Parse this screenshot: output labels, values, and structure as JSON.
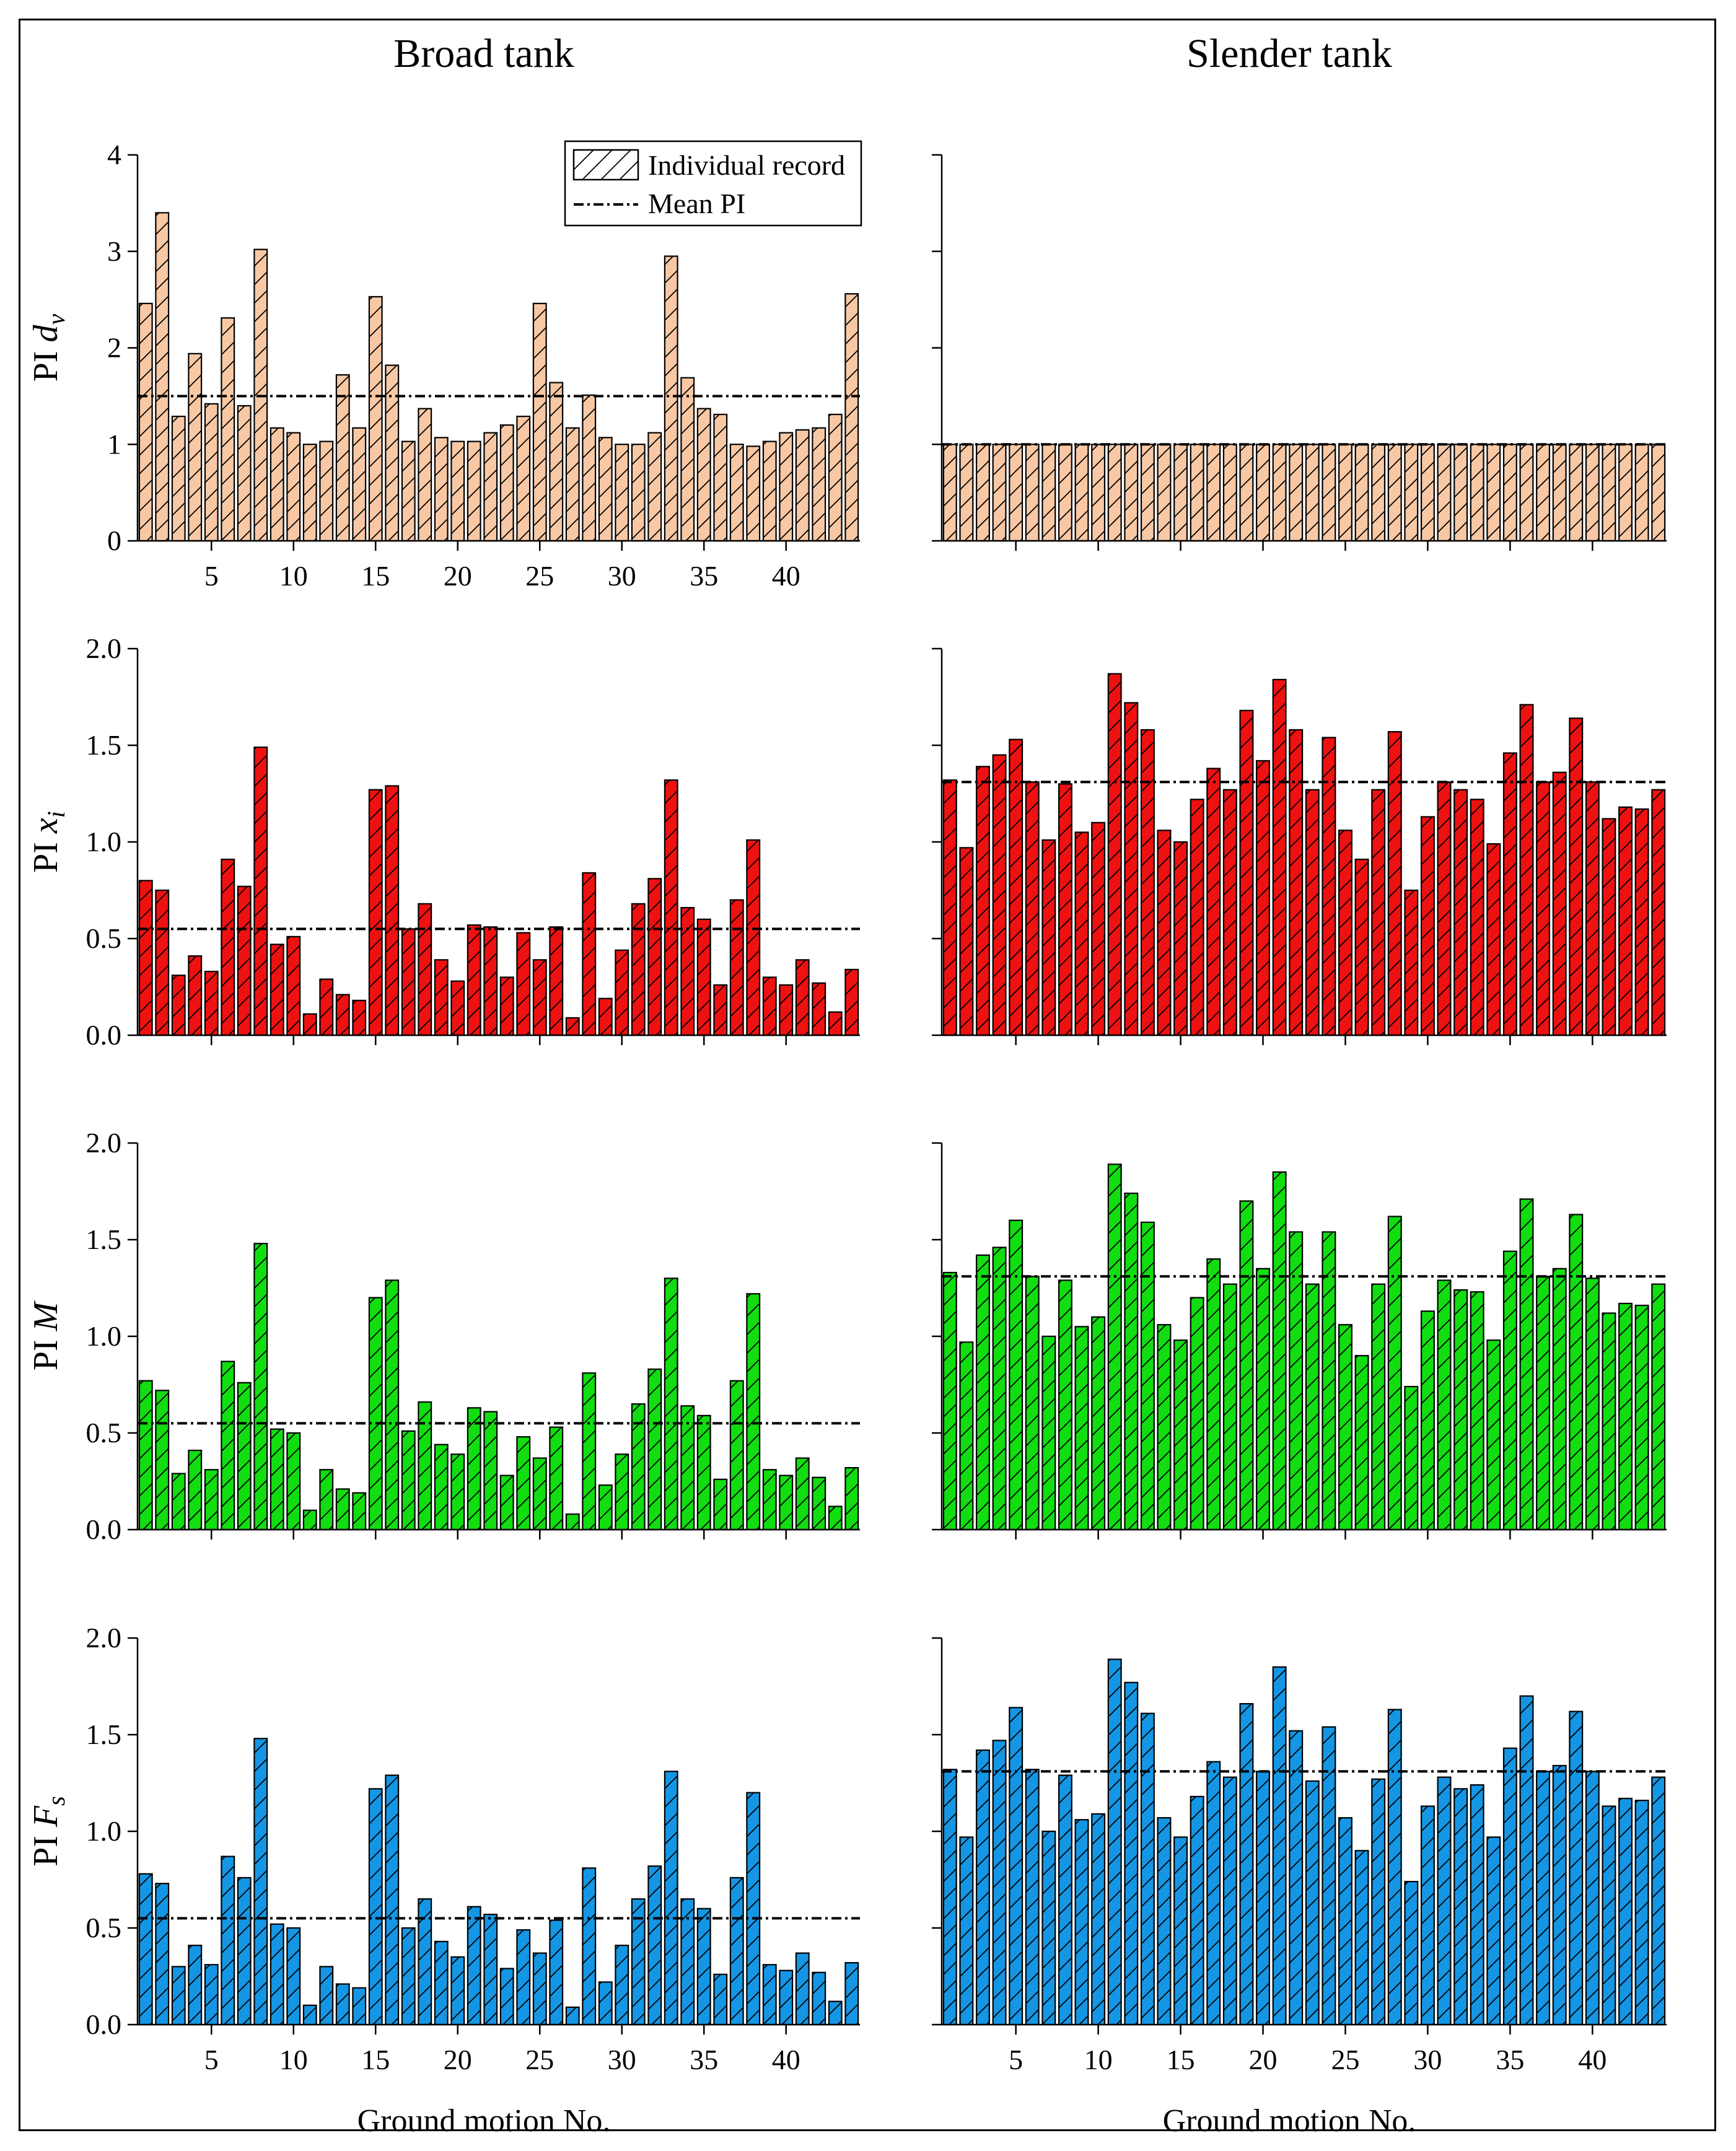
{
  "figure": {
    "column_titles": [
      "Broad tank",
      "Slender tank"
    ],
    "xlabel": "Ground motion No.",
    "legend": {
      "record_label": "Individual record",
      "mean_label": "Mean PI"
    },
    "colors": {
      "dv": "#f8c8a4",
      "xi": "#ee1111",
      "M": "#11dd11",
      "Fs": "#1496e4",
      "edge": "#000000"
    }
  },
  "chart_data": [
    {
      "type": "bar",
      "title": "Broad tank",
      "ylabel": "PI d_v",
      "ylabel_main": "PI ",
      "ylabel_var": "d",
      "ylabel_sub": "v",
      "color": "#f8c8a4",
      "ylim": [
        0,
        4
      ],
      "yticks": [
        0,
        1,
        2,
        3,
        4
      ],
      "yticklabels": [
        "0",
        "1",
        "2",
        "3",
        "4"
      ],
      "xticklabels": [
        "5",
        "10",
        "15",
        "20",
        "25",
        "30",
        "35",
        "40"
      ],
      "mean": 1.5,
      "values": [
        2.46,
        3.4,
        1.29,
        1.94,
        1.42,
        2.31,
        1.4,
        3.02,
        1.17,
        1.12,
        1.0,
        1.03,
        1.72,
        1.17,
        2.53,
        1.82,
        1.03,
        1.37,
        1.07,
        1.03,
        1.03,
        1.12,
        1.2,
        1.29,
        2.46,
        1.64,
        1.17,
        1.51,
        1.07,
        1.0,
        1.0,
        1.12,
        2.95,
        1.69,
        1.37,
        1.31,
        1.0,
        0.98,
        1.03,
        1.12,
        1.15,
        1.17,
        1.31,
        2.56
      ]
    },
    {
      "type": "bar",
      "title": "Slender tank",
      "ylabel": "",
      "color": "#f8c8a4",
      "ylim": [
        0,
        4
      ],
      "yticks": [
        0,
        1,
        2,
        3,
        4
      ],
      "yticklabels": [],
      "xticklabels": [],
      "mean": 1.0,
      "values": [
        1.0,
        1.0,
        1.0,
        1.0,
        1.0,
        1.0,
        1.0,
        1.0,
        1.0,
        1.0,
        1.0,
        1.0,
        1.0,
        1.0,
        1.0,
        1.0,
        1.0,
        1.0,
        1.0,
        1.0,
        1.0,
        1.0,
        1.0,
        1.0,
        1.0,
        1.0,
        1.0,
        1.0,
        1.0,
        1.0,
        1.0,
        1.0,
        1.0,
        1.0,
        1.0,
        1.0,
        1.0,
        1.0,
        1.0,
        1.0,
        1.0,
        1.0,
        1.0,
        1.0
      ]
    },
    {
      "type": "bar",
      "title": "Broad tank",
      "ylabel": "PI x_i",
      "ylabel_main": "PI ",
      "ylabel_var": "x",
      "ylabel_sub": "i",
      "color": "#ee1111",
      "ylim": [
        0,
        2
      ],
      "yticks": [
        0,
        0.5,
        1,
        1.5,
        2
      ],
      "yticklabels": [
        "0.0",
        "0.5",
        "1.0",
        "1.5",
        "2.0"
      ],
      "xticklabels": [],
      "mean": 0.55,
      "values": [
        0.8,
        0.75,
        0.31,
        0.41,
        0.33,
        0.91,
        0.77,
        1.49,
        0.47,
        0.51,
        0.11,
        0.29,
        0.21,
        0.18,
        1.27,
        1.29,
        0.55,
        0.68,
        0.39,
        0.28,
        0.57,
        0.56,
        0.3,
        0.53,
        0.39,
        0.56,
        0.09,
        0.84,
        0.19,
        0.44,
        0.68,
        0.81,
        1.32,
        0.66,
        0.6,
        0.26,
        0.7,
        1.01,
        0.3,
        0.26,
        0.39,
        0.27,
        0.12,
        0.34
      ]
    },
    {
      "type": "bar",
      "title": "Slender tank",
      "ylabel": "",
      "color": "#ee1111",
      "ylim": [
        0,
        2
      ],
      "yticks": [
        0,
        0.5,
        1,
        1.5,
        2
      ],
      "yticklabels": [],
      "xticklabels": [],
      "mean": 1.31,
      "values": [
        1.32,
        0.97,
        1.39,
        1.45,
        1.53,
        1.31,
        1.01,
        1.3,
        1.05,
        1.1,
        1.87,
        1.72,
        1.58,
        1.06,
        1.0,
        1.22,
        1.38,
        1.27,
        1.68,
        1.42,
        1.84,
        1.58,
        1.27,
        1.54,
        1.06,
        0.91,
        1.27,
        1.57,
        0.75,
        1.13,
        1.31,
        1.27,
        1.22,
        0.99,
        1.46,
        1.71,
        1.31,
        1.36,
        1.64,
        1.31,
        1.12,
        1.18,
        1.17,
        1.27
      ]
    },
    {
      "type": "bar",
      "title": "Broad tank",
      "ylabel": "PI M",
      "ylabel_main": "PI ",
      "ylabel_var": "M",
      "ylabel_sub": "",
      "color": "#11dd11",
      "ylim": [
        0,
        2
      ],
      "yticks": [
        0,
        0.5,
        1,
        1.5,
        2
      ],
      "yticklabels": [
        "0.0",
        "0.5",
        "1.0",
        "1.5",
        "2.0"
      ],
      "xticklabels": [],
      "mean": 0.55,
      "values": [
        0.77,
        0.72,
        0.29,
        0.41,
        0.31,
        0.87,
        0.76,
        1.48,
        0.52,
        0.5,
        0.1,
        0.31,
        0.21,
        0.19,
        1.2,
        1.29,
        0.51,
        0.66,
        0.44,
        0.39,
        0.63,
        0.61,
        0.28,
        0.48,
        0.37,
        0.53,
        0.08,
        0.81,
        0.23,
        0.39,
        0.65,
        0.83,
        1.3,
        0.64,
        0.59,
        0.26,
        0.77,
        1.22,
        0.31,
        0.28,
        0.37,
        0.27,
        0.12,
        0.32
      ]
    },
    {
      "type": "bar",
      "title": "Slender tank",
      "ylabel": "",
      "color": "#11dd11",
      "ylim": [
        0,
        2
      ],
      "yticks": [
        0,
        0.5,
        1,
        1.5,
        2
      ],
      "yticklabels": [],
      "xticklabels": [],
      "mean": 1.31,
      "values": [
        1.33,
        0.97,
        1.42,
        1.46,
        1.6,
        1.31,
        1.0,
        1.29,
        1.05,
        1.1,
        1.89,
        1.74,
        1.59,
        1.06,
        0.98,
        1.2,
        1.4,
        1.27,
        1.7,
        1.35,
        1.85,
        1.54,
        1.27,
        1.54,
        1.06,
        0.9,
        1.27,
        1.62,
        0.74,
        1.13,
        1.29,
        1.24,
        1.23,
        0.98,
        1.44,
        1.71,
        1.31,
        1.35,
        1.63,
        1.3,
        1.12,
        1.17,
        1.16,
        1.27
      ]
    },
    {
      "type": "bar",
      "title": "Broad tank",
      "ylabel": "PI F_s",
      "ylabel_main": "PI ",
      "ylabel_var": "F",
      "ylabel_sub": "s",
      "color": "#1496e4",
      "ylim": [
        0,
        2
      ],
      "yticks": [
        0,
        0.5,
        1,
        1.5,
        2
      ],
      "yticklabels": [
        "0.0",
        "0.5",
        "1.0",
        "1.5",
        "2.0"
      ],
      "xticklabels": [
        "5",
        "10",
        "15",
        "20",
        "25",
        "30",
        "35",
        "40"
      ],
      "mean": 0.55,
      "values": [
        0.78,
        0.73,
        0.3,
        0.41,
        0.31,
        0.87,
        0.76,
        1.48,
        0.52,
        0.5,
        0.1,
        0.3,
        0.21,
        0.19,
        1.22,
        1.29,
        0.5,
        0.65,
        0.43,
        0.35,
        0.61,
        0.57,
        0.29,
        0.49,
        0.37,
        0.54,
        0.09,
        0.81,
        0.22,
        0.41,
        0.65,
        0.82,
        1.31,
        0.65,
        0.6,
        0.26,
        0.76,
        1.2,
        0.31,
        0.28,
        0.37,
        0.27,
        0.12,
        0.32
      ]
    },
    {
      "type": "bar",
      "title": "Slender tank",
      "ylabel": "",
      "color": "#1496e4",
      "ylim": [
        0,
        2
      ],
      "yticks": [
        0,
        0.5,
        1,
        1.5,
        2
      ],
      "yticklabels": [],
      "xticklabels": [
        "5",
        "10",
        "15",
        "20",
        "25",
        "30",
        "35",
        "40"
      ],
      "mean": 1.31,
      "values": [
        1.32,
        0.97,
        1.42,
        1.47,
        1.64,
        1.32,
        1.0,
        1.29,
        1.06,
        1.09,
        1.89,
        1.77,
        1.61,
        1.07,
        0.97,
        1.18,
        1.36,
        1.28,
        1.66,
        1.31,
        1.85,
        1.52,
        1.26,
        1.54,
        1.07,
        0.9,
        1.27,
        1.63,
        0.74,
        1.13,
        1.28,
        1.22,
        1.24,
        0.97,
        1.43,
        1.7,
        1.31,
        1.34,
        1.62,
        1.31,
        1.13,
        1.17,
        1.16,
        1.28
      ]
    }
  ]
}
